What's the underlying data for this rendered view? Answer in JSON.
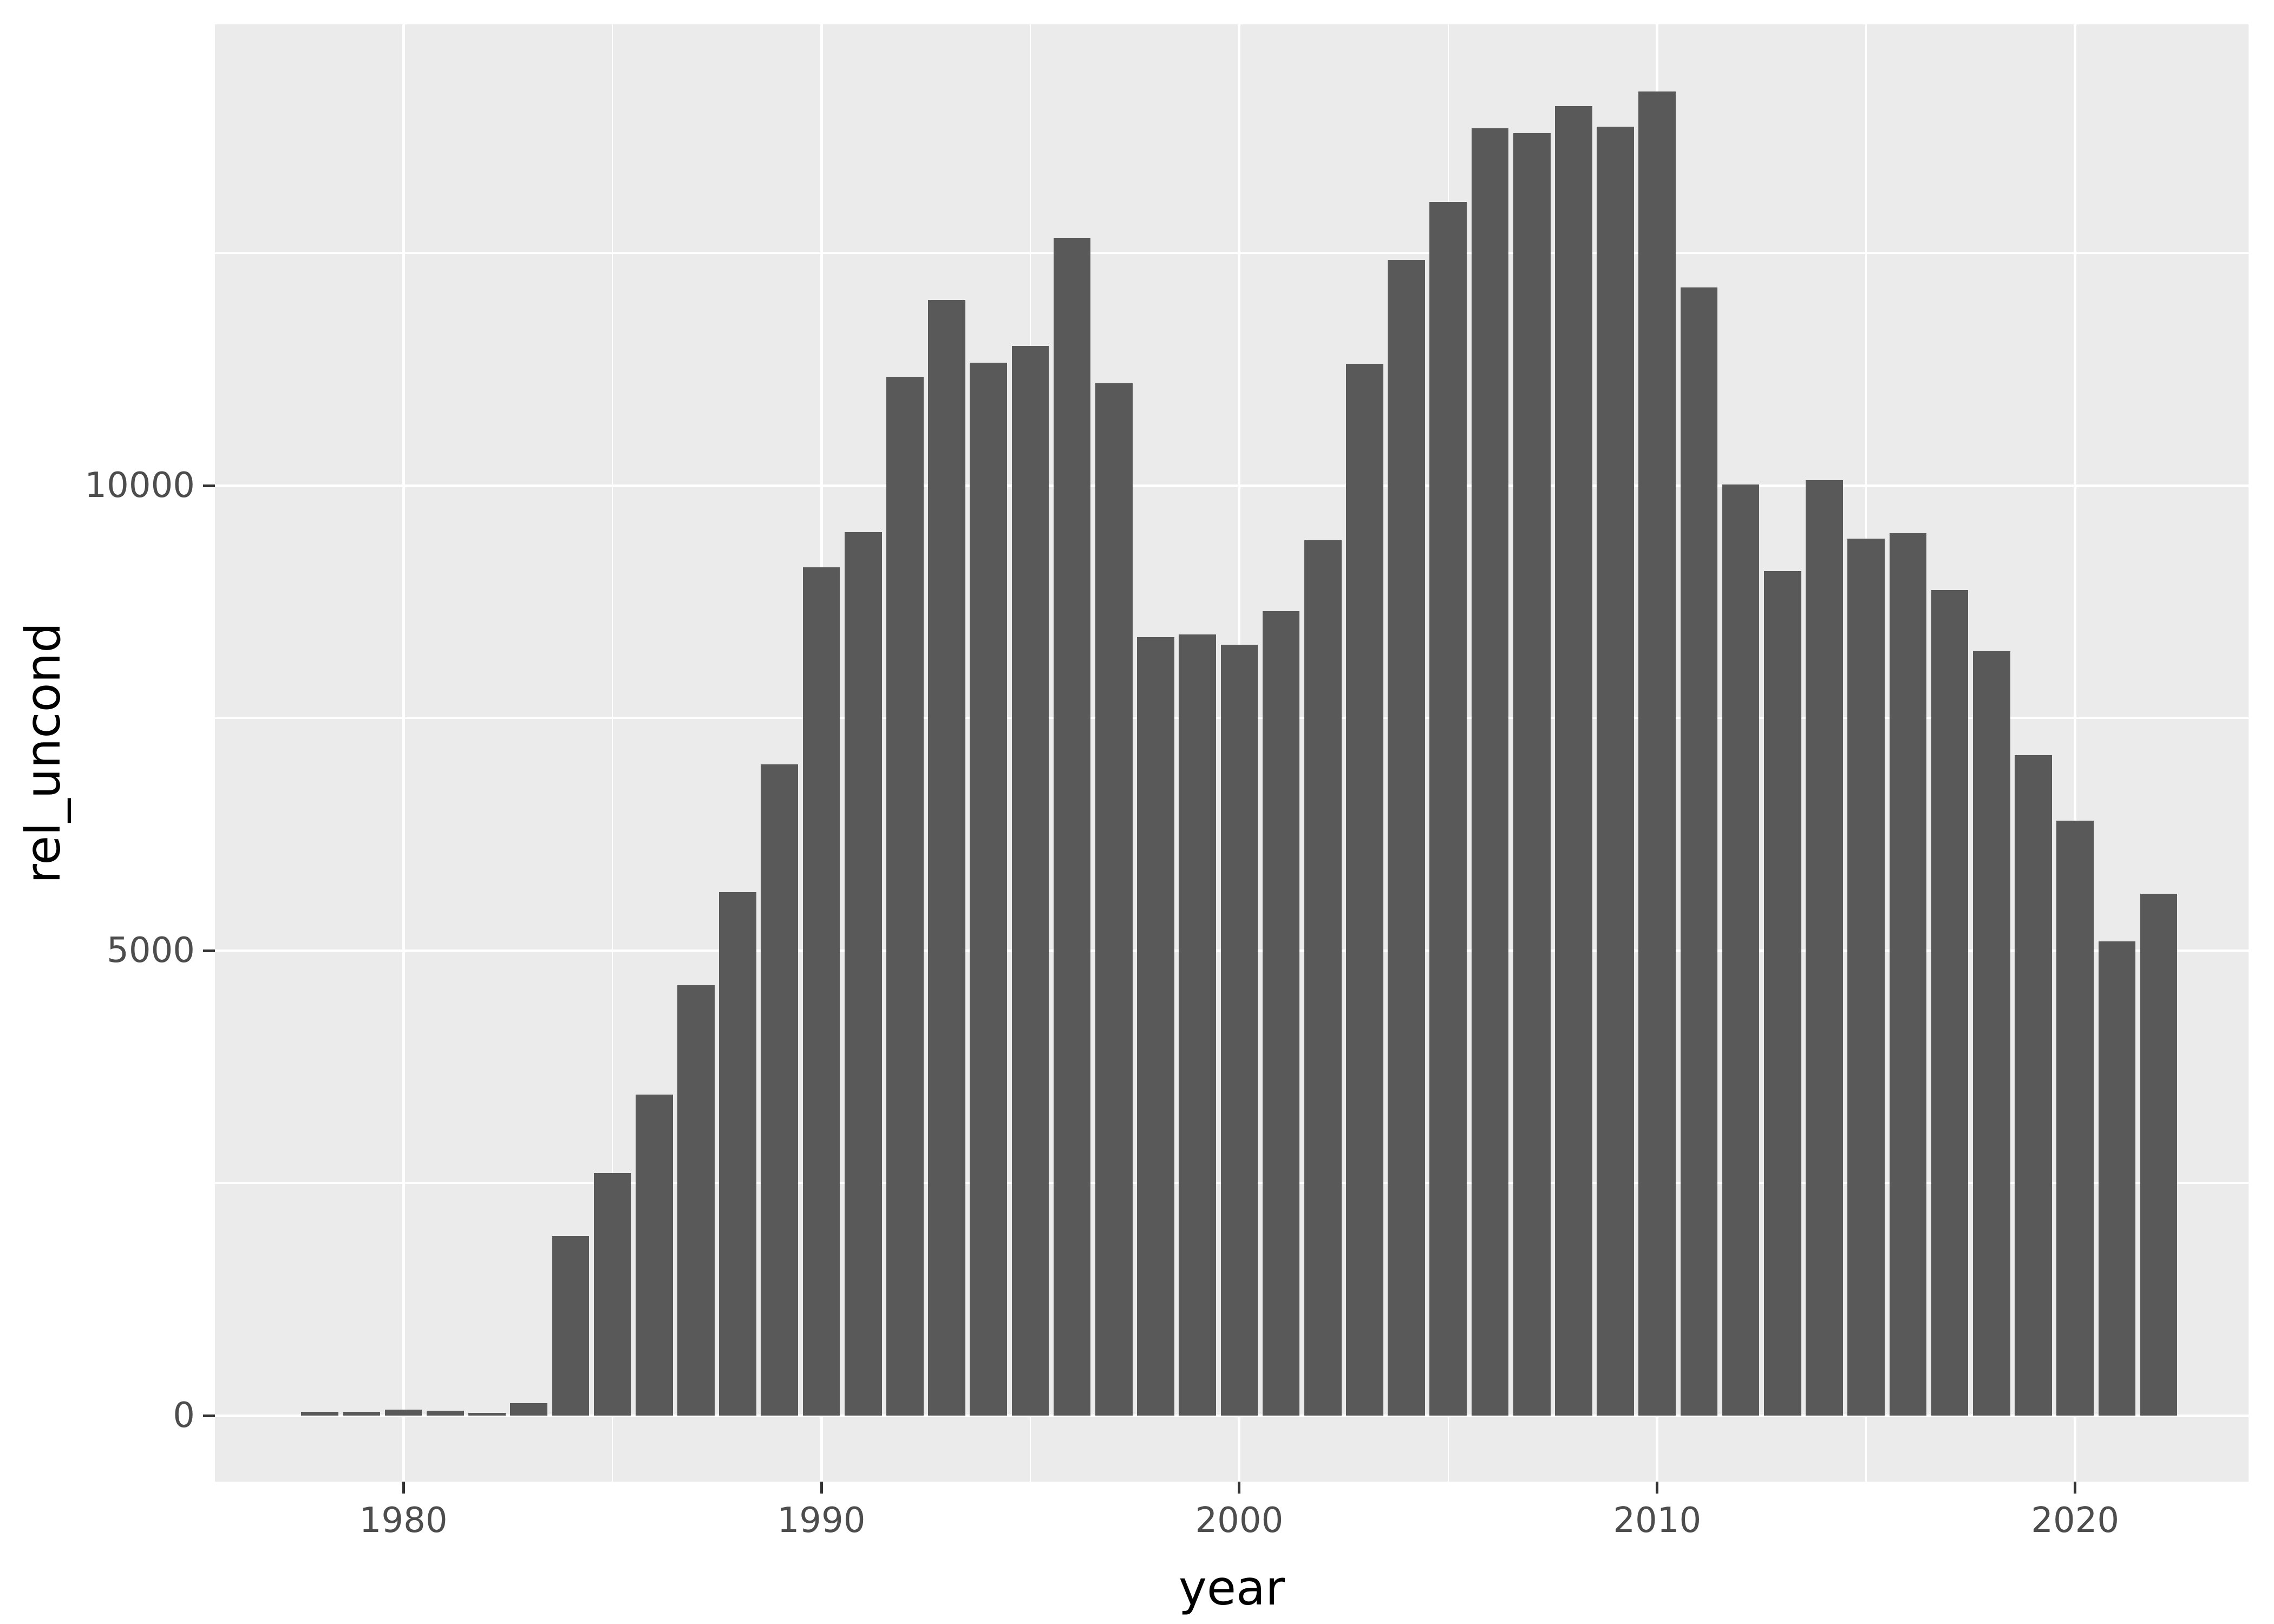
{
  "chart_data": {
    "type": "bar",
    "title": "",
    "xlabel": "year",
    "ylabel": "rel_uncond",
    "x": [
      1978,
      1979,
      1980,
      1981,
      1982,
      1983,
      1984,
      1985,
      1986,
      1987,
      1988,
      1989,
      1990,
      1991,
      1992,
      1993,
      1994,
      1995,
      1996,
      1997,
      1998,
      1999,
      2000,
      2001,
      2002,
      2003,
      2004,
      2005,
      2006,
      2007,
      2008,
      2009,
      2010,
      2011,
      2012,
      2013,
      2014,
      2015,
      2016,
      2017,
      2018,
      2019,
      2020,
      2021,
      2022
    ],
    "values": [
      40,
      40,
      65,
      50,
      30,
      135,
      1930,
      2610,
      3450,
      4630,
      5630,
      7000,
      9120,
      9500,
      11170,
      12000,
      11320,
      11500,
      12660,
      11100,
      8370,
      8400,
      8290,
      8650,
      9410,
      11310,
      12430,
      13050,
      13840,
      13790,
      14080,
      13860,
      14240,
      12130,
      10010,
      9080,
      10060,
      9430,
      9490,
      8880,
      8220,
      7100,
      6400,
      5100,
      5610
    ],
    "x_ticks": [
      1980,
      1990,
      2000,
      2010,
      2020
    ],
    "y_ticks": [
      0,
      5000,
      10000
    ],
    "x_minor_gridlines": [
      1985,
      1995,
      2005,
      2015
    ],
    "y_minor_gridlines": [
      2500,
      7500,
      12500
    ],
    "xlim": [
      1975.49,
      2024.15
    ],
    "ylim": [
      -710,
      14960
    ],
    "bar_width_years": 0.89,
    "grid_on": true,
    "legend": null,
    "colors": {
      "bar": "#595959",
      "panel_background": "#EBEBEB",
      "gridline": "#FFFFFF",
      "tick_mark": "#333333",
      "tick_label": "#4D4D4D",
      "axis_title": "#000000",
      "page_background": "#FFFFFF"
    }
  }
}
